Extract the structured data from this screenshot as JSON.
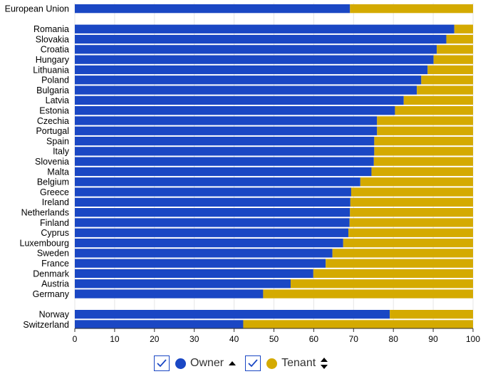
{
  "chart_data": {
    "type": "bar",
    "orientation": "horizontal",
    "stacked": true,
    "xlim": [
      0,
      100
    ],
    "x_ticks": [
      "0",
      "10",
      "20",
      "30",
      "40",
      "50",
      "60",
      "70",
      "80",
      "90",
      "100"
    ],
    "groups": [
      {
        "categories": [
          "European Union"
        ],
        "owner": [
          69.1
        ]
      },
      {
        "categories": [
          "Romania",
          "Slovakia",
          "Croatia",
          "Hungary",
          "Lithuania",
          "Poland",
          "Bulgaria",
          "Latvia",
          "Estonia",
          "Czechia",
          "Portugal",
          "Spain",
          "Italy",
          "Slovenia",
          "Malta",
          "Belgium",
          "Greece",
          "Ireland",
          "Netherlands",
          "Finland",
          "Cyprus",
          "Luxembourg",
          "Sweden",
          "France",
          "Denmark",
          "Austria",
          "Germany"
        ],
        "owner": [
          95.3,
          93.3,
          90.9,
          90.1,
          88.6,
          87.0,
          85.9,
          82.6,
          80.4,
          75.9,
          75.9,
          75.2,
          75.2,
          75.1,
          74.5,
          71.7,
          69.4,
          69.2,
          69.1,
          69.0,
          68.7,
          67.4,
          64.7,
          63.0,
          59.9,
          54.2,
          47.3
        ]
      },
      {
        "categories": [
          "Norway",
          "Switzerland"
        ],
        "owner": [
          79.1,
          42.3
        ]
      }
    ],
    "series": [
      {
        "name": "Owner",
        "color": "#1a47c4"
      },
      {
        "name": "Tenant",
        "color": "#d4aa00"
      }
    ],
    "grid": "vertical",
    "legend_placement": "bottom-center"
  },
  "legend": {
    "items": [
      {
        "label": "Owner",
        "color": "#1a47c4",
        "sort": "sort-ascending-icon"
      },
      {
        "label": "Tenant",
        "color": "#d4aa00",
        "sort": "sort-both-icon"
      }
    ]
  }
}
